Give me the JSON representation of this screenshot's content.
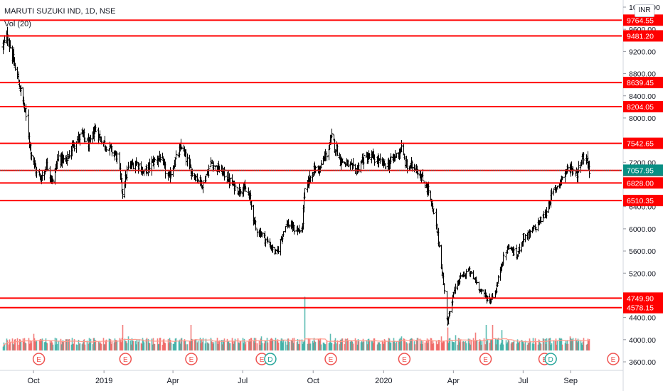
{
  "header": {
    "symbol_title": "MARUTI SUZUKI IND, 1D, NSE",
    "volume_label": "Vol (20)",
    "currency": "INR"
  },
  "colors": {
    "up": "#26a69a",
    "down": "#ef5350",
    "bar": "#000000",
    "level_line": "#ff0000",
    "level_label_bg": "#ff0000",
    "last_price_bg": "#0a8f84",
    "volume_ma": "#ff9a8c",
    "axis_text": "#131722"
  },
  "chart_data": {
    "type": "ohlc_bar",
    "title": "MARUTI SUZUKI IND, 1D, NSE",
    "y_axis": {
      "ylim": [
        3450,
        10100
      ],
      "ticks": [
        3600,
        4000,
        4400,
        4800,
        5200,
        5600,
        6000,
        6400,
        6800,
        7200,
        7600,
        8000,
        8400,
        8800,
        9200,
        9600,
        10000
      ],
      "tick_labels": [
        "3600.00",
        "4000.00",
        "4400.00",
        "4800.00",
        "5200.00",
        "5600.00",
        "6000.00",
        "6400.00",
        "6800.00",
        "7200.00",
        "7600.00",
        "8000.00",
        "8400.00",
        "8800.00",
        "9200.00",
        "9600.00",
        "10000.00"
      ],
      "position": "right"
    },
    "x_axis": {
      "tick_labels": [
        "Oct",
        "2019",
        "Apr",
        "Jul",
        "Oct",
        "2020",
        "Apr",
        "Jul",
        "Sep"
      ],
      "range": [
        "2018-08-22",
        "2020-09-25"
      ]
    },
    "price_path": [
      {
        "date": "2018-08-22",
        "close": 9300
      },
      {
        "date": "2018-08-28",
        "close": 9470
      },
      {
        "date": "2018-09-04",
        "close": 9050
      },
      {
        "date": "2018-09-12",
        "close": 8600
      },
      {
        "date": "2018-09-20",
        "close": 8100
      },
      {
        "date": "2018-09-27",
        "close": 7400
      },
      {
        "date": "2018-10-04",
        "close": 7050
      },
      {
        "date": "2018-10-10",
        "close": 6900
      },
      {
        "date": "2018-10-18",
        "close": 7150
      },
      {
        "date": "2018-10-26",
        "close": 6850
      },
      {
        "date": "2018-11-02",
        "close": 7300
      },
      {
        "date": "2018-11-12",
        "close": 7200
      },
      {
        "date": "2018-11-22",
        "close": 7550
      },
      {
        "date": "2018-12-03",
        "close": 7700
      },
      {
        "date": "2018-12-12",
        "close": 7500
      },
      {
        "date": "2018-12-20",
        "close": 7800
      },
      {
        "date": "2018-12-28",
        "close": 7600
      },
      {
        "date": "2019-01-08",
        "close": 7450
      },
      {
        "date": "2019-01-18",
        "close": 7300
      },
      {
        "date": "2019-01-25",
        "close": 6650
      },
      {
        "date": "2019-02-01",
        "close": 7100
      },
      {
        "date": "2019-02-12",
        "close": 7200
      },
      {
        "date": "2019-02-22",
        "close": 7000
      },
      {
        "date": "2019-03-05",
        "close": 7200
      },
      {
        "date": "2019-03-15",
        "close": 7300
      },
      {
        "date": "2019-03-26",
        "close": 6900
      },
      {
        "date": "2019-04-03",
        "close": 7200
      },
      {
        "date": "2019-04-12",
        "close": 7500
      },
      {
        "date": "2019-04-22",
        "close": 7100
      },
      {
        "date": "2019-04-30",
        "close": 6950
      },
      {
        "date": "2019-05-10",
        "close": 6800
      },
      {
        "date": "2019-05-20",
        "close": 7200
      },
      {
        "date": "2019-05-28",
        "close": 7100
      },
      {
        "date": "2019-06-06",
        "close": 7000
      },
      {
        "date": "2019-06-14",
        "close": 6850
      },
      {
        "date": "2019-06-24",
        "close": 6700
      },
      {
        "date": "2019-07-02",
        "close": 6750
      },
      {
        "date": "2019-07-10",
        "close": 6550
      },
      {
        "date": "2019-07-18",
        "close": 6000
      },
      {
        "date": "2019-07-26",
        "close": 5900
      },
      {
        "date": "2019-08-05",
        "close": 5700
      },
      {
        "date": "2019-08-14",
        "close": 5550
      },
      {
        "date": "2019-08-26",
        "close": 6100
      },
      {
        "date": "2019-09-06",
        "close": 6000
      },
      {
        "date": "2019-09-16",
        "close": 5950
      },
      {
        "date": "2019-09-20",
        "close": 6700
      },
      {
        "date": "2019-09-30",
        "close": 7050
      },
      {
        "date": "2019-10-10",
        "close": 7100
      },
      {
        "date": "2019-10-18",
        "close": 7350
      },
      {
        "date": "2019-10-25",
        "close": 7650
      },
      {
        "date": "2019-11-05",
        "close": 7250
      },
      {
        "date": "2019-11-15",
        "close": 7150
      },
      {
        "date": "2019-11-25",
        "close": 7050
      },
      {
        "date": "2019-12-05",
        "close": 7250
      },
      {
        "date": "2019-12-16",
        "close": 7300
      },
      {
        "date": "2019-12-26",
        "close": 7200
      },
      {
        "date": "2020-01-06",
        "close": 7150
      },
      {
        "date": "2020-01-15",
        "close": 7300
      },
      {
        "date": "2020-01-24",
        "close": 7450
      },
      {
        "date": "2020-01-31",
        "close": 7100
      },
      {
        "date": "2020-02-10",
        "close": 7150
      },
      {
        "date": "2020-02-20",
        "close": 6900
      },
      {
        "date": "2020-02-28",
        "close": 6700
      },
      {
        "date": "2020-03-06",
        "close": 6250
      },
      {
        "date": "2020-03-12",
        "close": 5800
      },
      {
        "date": "2020-03-19",
        "close": 5000
      },
      {
        "date": "2020-03-24",
        "close": 4300
      },
      {
        "date": "2020-03-31",
        "close": 4800
      },
      {
        "date": "2020-04-09",
        "close": 5100
      },
      {
        "date": "2020-04-20",
        "close": 5250
      },
      {
        "date": "2020-04-30",
        "close": 5050
      },
      {
        "date": "2020-05-08",
        "close": 4850
      },
      {
        "date": "2020-05-18",
        "close": 4700
      },
      {
        "date": "2020-05-26",
        "close": 4900
      },
      {
        "date": "2020-06-03",
        "close": 5400
      },
      {
        "date": "2020-06-12",
        "close": 5700
      },
      {
        "date": "2020-06-22",
        "close": 5500
      },
      {
        "date": "2020-07-01",
        "close": 5850
      },
      {
        "date": "2020-07-10",
        "close": 5900
      },
      {
        "date": "2020-07-20",
        "close": 6100
      },
      {
        "date": "2020-07-29",
        "close": 6250
      },
      {
        "date": "2020-08-07",
        "close": 6600
      },
      {
        "date": "2020-08-17",
        "close": 6850
      },
      {
        "date": "2020-08-26",
        "close": 7050
      },
      {
        "date": "2020-09-01",
        "close": 7100
      },
      {
        "date": "2020-09-09",
        "close": 7000
      },
      {
        "date": "2020-09-16",
        "close": 7300
      },
      {
        "date": "2020-09-22",
        "close": 7250
      },
      {
        "date": "2020-09-25",
        "close": 7058
      }
    ],
    "horizontal_levels": [
      {
        "value": 9764.55,
        "label": "9764.55"
      },
      {
        "value": 9481.2,
        "label": "9481.20"
      },
      {
        "value": 8639.45,
        "label": "8639.45"
      },
      {
        "value": 8204.05,
        "label": "8204.05"
      },
      {
        "value": 7542.65,
        "label": "7542.65"
      },
      {
        "value": 7053.0,
        "label": "7053.00"
      },
      {
        "value": 6828.0,
        "label": "6828.00"
      },
      {
        "value": 6510.35,
        "label": "6510.35"
      },
      {
        "value": 4749.9,
        "label": "4749.90"
      },
      {
        "value": 4578.15,
        "label": "4578.15"
      }
    ],
    "last_price": {
      "value": 7057.95,
      "label": "7057.95"
    },
    "volume": {
      "label": "Vol (20)",
      "ma_period": 20,
      "spikes": [
        {
          "date": "2018-08-22",
          "rel": 0.15
        },
        {
          "date": "2018-10-01",
          "rel": 0.65
        },
        {
          "date": "2018-10-10",
          "rel": 0.45
        },
        {
          "date": "2018-10-29",
          "rel": 0.5
        },
        {
          "date": "2019-01-25",
          "rel": 1.0
        },
        {
          "date": "2019-02-01",
          "rel": 0.55
        },
        {
          "date": "2019-02-27",
          "rel": 0.45
        },
        {
          "date": "2019-04-24",
          "rel": 1.0
        },
        {
          "date": "2019-05-06",
          "rel": 0.5
        },
        {
          "date": "2019-07-25",
          "rel": 0.55
        },
        {
          "date": "2019-08-05",
          "rel": 0.4
        },
        {
          "date": "2019-09-20",
          "rel": 2.1
        },
        {
          "date": "2019-10-23",
          "rel": 0.65
        },
        {
          "date": "2020-01-24",
          "rel": 0.55
        },
        {
          "date": "2020-03-16",
          "rel": 0.55
        },
        {
          "date": "2020-03-24",
          "rel": 0.9
        },
        {
          "date": "2020-04-03",
          "rel": 0.6
        },
        {
          "date": "2020-04-29",
          "rel": 0.7
        },
        {
          "date": "2020-05-13",
          "rel": 1.0
        },
        {
          "date": "2020-05-22",
          "rel": 1.0
        },
        {
          "date": "2020-06-03",
          "rel": 0.8
        },
        {
          "date": "2020-07-29",
          "rel": 0.45
        },
        {
          "date": "2020-08-31",
          "rel": 0.55
        }
      ]
    },
    "event_markers": [
      {
        "date": "2018-10-08",
        "letter": "E",
        "type": "earnings"
      },
      {
        "date": "2019-01-29",
        "letter": "E",
        "type": "earnings"
      },
      {
        "date": "2019-04-25",
        "letter": "E",
        "type": "earnings"
      },
      {
        "date": "2019-07-26",
        "letter": "E",
        "type": "earnings"
      },
      {
        "date": "2019-08-06",
        "letter": "D",
        "type": "dividend"
      },
      {
        "date": "2019-10-24",
        "letter": "E",
        "type": "earnings"
      },
      {
        "date": "2020-01-28",
        "letter": "E",
        "type": "earnings"
      },
      {
        "date": "2020-05-13",
        "letter": "E",
        "type": "earnings"
      },
      {
        "date": "2020-07-29",
        "letter": "E",
        "type": "earnings"
      },
      {
        "date": "2020-08-06",
        "letter": "D",
        "type": "dividend"
      },
      {
        "date": "2020-10-28",
        "letter": "E",
        "type": "earnings",
        "offscreen_axis": true
      }
    ]
  }
}
